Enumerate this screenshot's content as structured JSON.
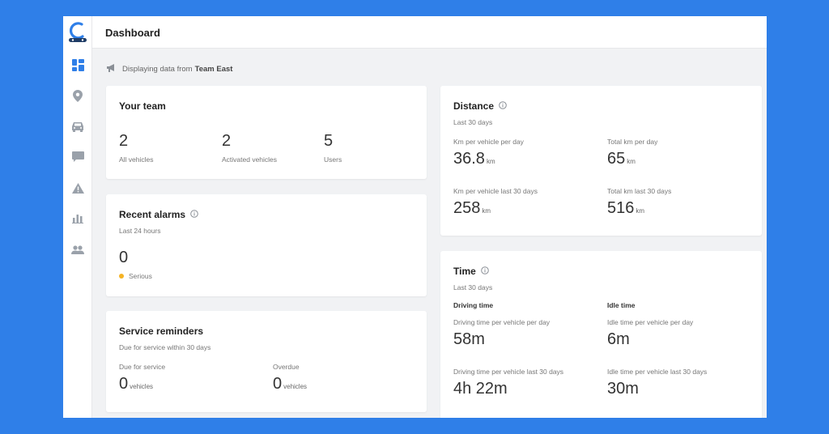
{
  "header": {
    "title": "Dashboard"
  },
  "banner": {
    "prefix": "Displaying data from",
    "team": "Team East"
  },
  "sidebar": {
    "items": [
      {
        "name": "dashboard",
        "icon": "dashboard-icon",
        "active": true
      },
      {
        "name": "locations",
        "icon": "location-pin-icon"
      },
      {
        "name": "vehicles",
        "icon": "car-icon"
      },
      {
        "name": "messages",
        "icon": "chat-icon"
      },
      {
        "name": "alarms",
        "icon": "warning-icon"
      },
      {
        "name": "reports",
        "icon": "bar-chart-icon"
      },
      {
        "name": "users",
        "icon": "users-icon"
      }
    ]
  },
  "colors": {
    "accent": "#2f7fe8",
    "serious": "#f5b324",
    "icon": "#9aa1aa"
  },
  "team": {
    "title": "Your team",
    "stats": [
      {
        "value": "2",
        "label": "All vehicles"
      },
      {
        "value": "2",
        "label": "Activated vehicles"
      },
      {
        "value": "5",
        "label": "Users"
      }
    ]
  },
  "alarms": {
    "title": "Recent alarms",
    "subtitle": "Last 24 hours",
    "value": "0",
    "legend": "Serious"
  },
  "service": {
    "title": "Service reminders",
    "subtitle": "Due for service within 30 days",
    "due": {
      "label": "Due for service",
      "value": "0",
      "unit": "vehicles"
    },
    "overdue": {
      "label": "Overdue",
      "value": "0",
      "unit": "vehicles"
    }
  },
  "distance": {
    "title": "Distance",
    "subtitle": "Last 30 days",
    "stats": [
      {
        "label": "Km per vehicle per day",
        "value": "36.8",
        "unit": "km"
      },
      {
        "label": "Total km per day",
        "value": "65",
        "unit": "km"
      },
      {
        "label": "Km per vehicle last 30 days",
        "value": "258",
        "unit": "km"
      },
      {
        "label": "Total km last 30 days",
        "value": "516",
        "unit": "km"
      }
    ]
  },
  "time": {
    "title": "Time",
    "subtitle": "Last 30 days",
    "driving_head": "Driving time",
    "idle_head": "Idle time",
    "stats": [
      {
        "label": "Driving time per vehicle per day",
        "value": "58m"
      },
      {
        "label": "Idle time per vehicle per day",
        "value": "6m"
      },
      {
        "label": "Driving time per vehicle last 30 days",
        "value": "4h 22m"
      },
      {
        "label": "Idle time per vehicle last 30 days",
        "value": "30m"
      }
    ]
  }
}
